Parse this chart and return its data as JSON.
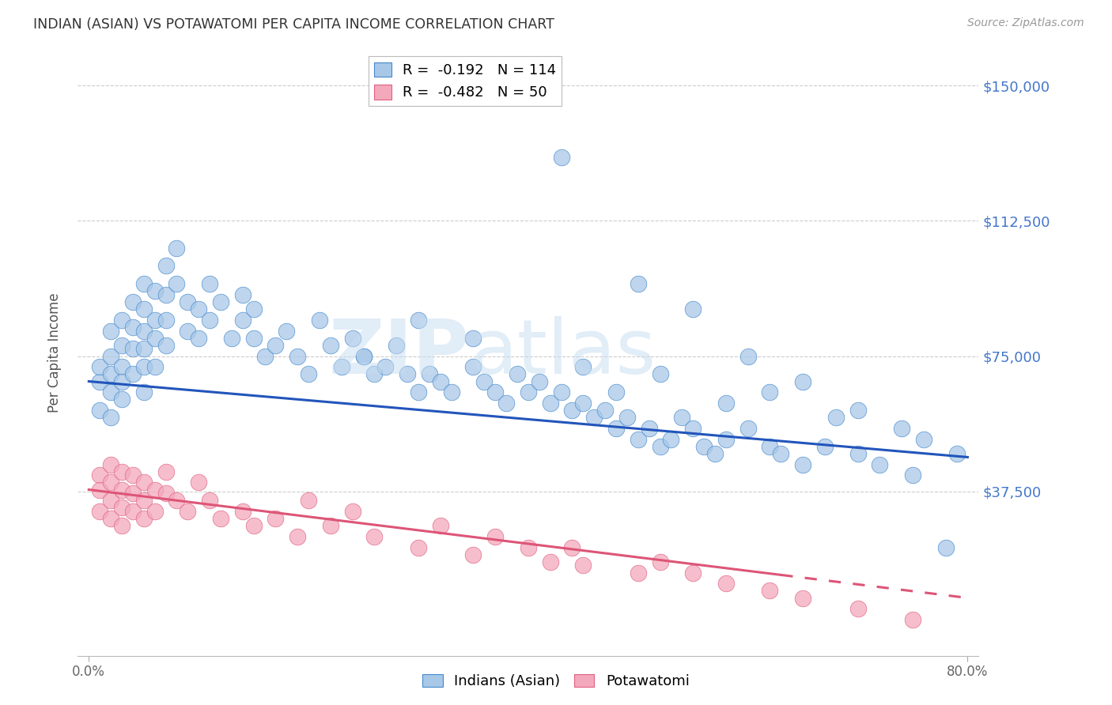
{
  "title": "INDIAN (ASIAN) VS POTAWATOMI PER CAPITA INCOME CORRELATION CHART",
  "source": "Source: ZipAtlas.com",
  "ylabel": "Per Capita Income",
  "yticks": [
    0,
    37500,
    75000,
    112500,
    150000
  ],
  "ytick_labels": [
    "",
    "$37,500",
    "$75,000",
    "$112,500",
    "$150,000"
  ],
  "blue_R": -0.192,
  "blue_N": 114,
  "pink_R": -0.482,
  "pink_N": 50,
  "blue_fill": "#A8C8E8",
  "pink_fill": "#F4A8BC",
  "blue_edge": "#4488CC",
  "pink_edge": "#E06080",
  "blue_line": "#2255BB",
  "pink_line": "#DD5577",
  "blue_trend_y0": 68000,
  "blue_trend_y1": 47000,
  "pink_trend_y0": 38000,
  "pink_trend_y1": 8000,
  "pink_solid_end_x": 63,
  "xmin": 0,
  "xmax": 80,
  "ymin": -8000,
  "ymax": 160000,
  "blue_points_x": [
    1,
    1,
    1,
    2,
    2,
    2,
    2,
    2,
    3,
    3,
    3,
    3,
    3,
    4,
    4,
    4,
    4,
    5,
    5,
    5,
    5,
    5,
    5,
    6,
    6,
    6,
    6,
    7,
    7,
    7,
    7,
    8,
    8,
    9,
    9,
    10,
    10,
    11,
    11,
    12,
    13,
    14,
    14,
    15,
    15,
    16,
    17,
    18,
    19,
    20,
    21,
    22,
    23,
    24,
    25,
    26,
    27,
    28,
    29,
    30,
    31,
    32,
    33,
    35,
    36,
    37,
    38,
    39,
    40,
    41,
    42,
    43,
    44,
    45,
    46,
    47,
    48,
    49,
    50,
    51,
    52,
    53,
    54,
    55,
    56,
    57,
    58,
    60,
    62,
    63,
    65,
    67,
    70,
    72,
    75,
    43,
    50,
    55,
    60,
    65,
    45,
    30,
    35,
    25,
    48,
    52,
    58,
    62,
    68,
    70,
    74,
    76,
    79,
    78
  ],
  "blue_points_y": [
    68000,
    72000,
    60000,
    75000,
    82000,
    65000,
    70000,
    58000,
    85000,
    78000,
    72000,
    68000,
    63000,
    90000,
    83000,
    77000,
    70000,
    95000,
    88000,
    82000,
    77000,
    72000,
    65000,
    93000,
    85000,
    80000,
    72000,
    100000,
    92000,
    85000,
    78000,
    105000,
    95000,
    90000,
    82000,
    88000,
    80000,
    95000,
    85000,
    90000,
    80000,
    85000,
    92000,
    88000,
    80000,
    75000,
    78000,
    82000,
    75000,
    70000,
    85000,
    78000,
    72000,
    80000,
    75000,
    70000,
    72000,
    78000,
    70000,
    65000,
    70000,
    68000,
    65000,
    72000,
    68000,
    65000,
    62000,
    70000,
    65000,
    68000,
    62000,
    65000,
    60000,
    62000,
    58000,
    60000,
    55000,
    58000,
    52000,
    55000,
    50000,
    52000,
    58000,
    55000,
    50000,
    48000,
    52000,
    55000,
    50000,
    48000,
    45000,
    50000,
    48000,
    45000,
    42000,
    130000,
    95000,
    88000,
    75000,
    68000,
    72000,
    85000,
    80000,
    75000,
    65000,
    70000,
    62000,
    65000,
    58000,
    60000,
    55000,
    52000,
    48000,
    22000
  ],
  "pink_points_x": [
    1,
    1,
    1,
    2,
    2,
    2,
    2,
    3,
    3,
    3,
    3,
    4,
    4,
    4,
    5,
    5,
    5,
    6,
    6,
    7,
    7,
    8,
    9,
    10,
    11,
    12,
    14,
    15,
    17,
    19,
    20,
    22,
    24,
    26,
    30,
    32,
    35,
    37,
    40,
    42,
    44,
    45,
    50,
    52,
    55,
    58,
    62,
    65,
    70,
    75
  ],
  "pink_points_y": [
    42000,
    38000,
    32000,
    45000,
    40000,
    35000,
    30000,
    43000,
    38000,
    33000,
    28000,
    42000,
    37000,
    32000,
    40000,
    35000,
    30000,
    38000,
    32000,
    43000,
    37000,
    35000,
    32000,
    40000,
    35000,
    30000,
    32000,
    28000,
    30000,
    25000,
    35000,
    28000,
    32000,
    25000,
    22000,
    28000,
    20000,
    25000,
    22000,
    18000,
    22000,
    17000,
    15000,
    18000,
    15000,
    12000,
    10000,
    8000,
    5000,
    2000
  ]
}
